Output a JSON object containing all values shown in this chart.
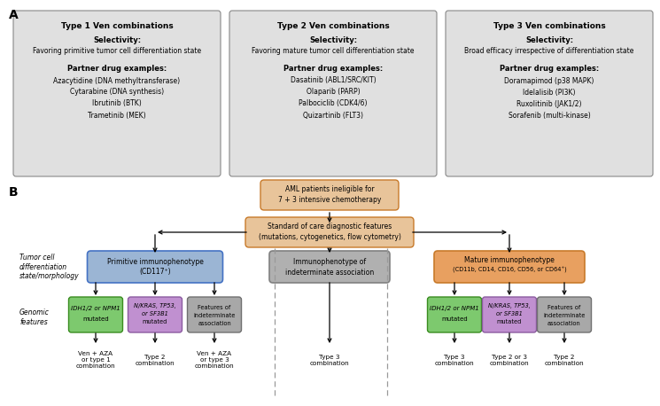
{
  "panel_A": {
    "boxes": [
      {
        "title": "Type 1 Ven combinations",
        "selectivity_label": "Selectivity:",
        "selectivity_text": "Favoring primitive tumor cell differentiation state",
        "partner_label": "Partner drug examples:",
        "partner_drugs": [
          "Azacytidine (DNA methyltransferase)",
          "Cytarabine (DNA synthesis)",
          "Ibrutinib (BTK)",
          "Trametinib (MEK)"
        ]
      },
      {
        "title": "Type 2 Ven combinations",
        "selectivity_label": "Selectivity:",
        "selectivity_text": "Favoring mature tumor cell differentiation state",
        "partner_label": "Partner drug examples:",
        "partner_drugs": [
          "Dasatinib (ABL1/SRC/KIT)",
          "Olaparib (PARP)",
          "Palbociclib (CDK4/6)",
          "Quizartinib (FLT3)"
        ]
      },
      {
        "title": "Type 3 Ven combinations",
        "selectivity_label": "Selectivity:",
        "selectivity_text": "Broad efficacy irrespective of differentiation state",
        "partner_label": "Partner drug examples:",
        "partner_drugs": [
          "Doramapimod (p38 MAPK)",
          "Idelalisib (PI3K)",
          "Ruxolitinib (JAK1/2)",
          "Sorafenib (multi-kinase)"
        ]
      }
    ],
    "box_color": "#e0e0e0",
    "border_color": "#888888"
  },
  "panel_B": {
    "top_box_color": "#e8c49a",
    "top_box_border": "#c87a2a",
    "standard_box_color": "#e8c49a",
    "standard_box_border": "#c87a2a",
    "primitive_color": "#9bb5d4",
    "primitive_border": "#4472c4",
    "indet_color": "#b0b0b0",
    "indet_border": "#808080",
    "mature_color": "#e8a060",
    "mature_border": "#c87a2a",
    "green_color": "#7dc96e",
    "green_border": "#3a8c20",
    "purple_color": "#c090d0",
    "purple_border": "#8b5ba0",
    "gray_color": "#a8a8a8",
    "gray_border": "#707070"
  }
}
